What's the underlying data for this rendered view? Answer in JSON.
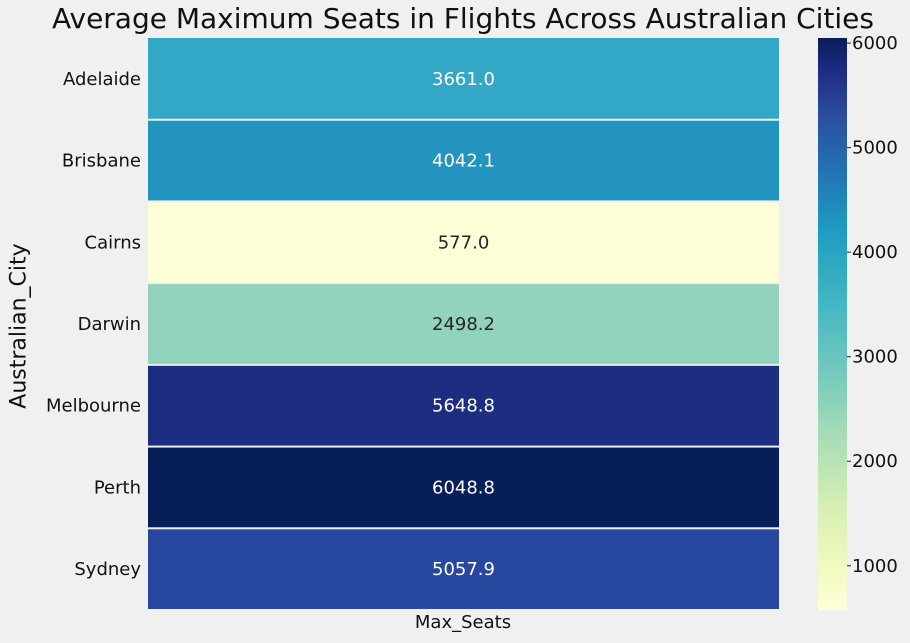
{
  "chart_data": {
    "type": "heatmap",
    "title": "Average Maximum Seats in Flights Across Australian Cities",
    "xlabel": "Max_Seats",
    "ylabel": "Australian_City",
    "columns": [
      "Max_Seats"
    ],
    "rows": [
      "Adelaide",
      "Brisbane",
      "Cairns",
      "Darwin",
      "Melbourne",
      "Perth",
      "Sydney"
    ],
    "values": [
      3661.0,
      4042.1,
      577.0,
      2498.2,
      5648.8,
      6048.8,
      5057.9
    ],
    "value_labels": [
      "3661.0",
      "4042.1",
      "577.0",
      "2498.2",
      "5648.8",
      "6048.8",
      "5057.9"
    ],
    "colormap": "YlGnBu",
    "vmin": 577.0,
    "vmax": 6048.8,
    "colorbar_ticks": [
      1000,
      2000,
      3000,
      4000,
      5000,
      6000
    ],
    "colorbar_tick_labels": [
      "1000",
      "2000",
      "3000",
      "4000",
      "5000",
      "6000"
    ],
    "cell_colors": [
      "#32a7c6",
      "#2393c0",
      "#fdfed6",
      "#91d3bb",
      "#1d2d81",
      "#081e59",
      "#2848a0"
    ],
    "grid": false,
    "colorbar_position": "right"
  }
}
